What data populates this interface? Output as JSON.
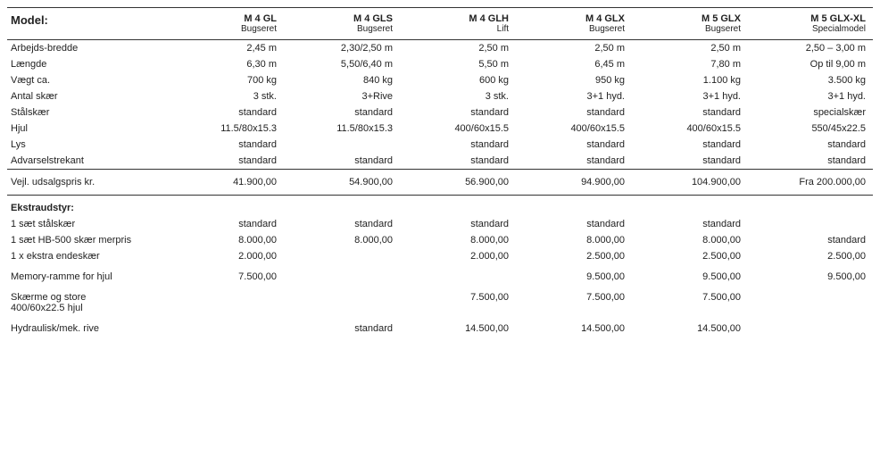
{
  "header": {
    "label": "Model:",
    "models": [
      {
        "name": "M 4 GL",
        "sub": "Bugseret"
      },
      {
        "name": "M 4 GLS",
        "sub": "Bugseret"
      },
      {
        "name": "M 4 GLH",
        "sub": "Lift"
      },
      {
        "name": "M 4 GLX",
        "sub": "Bugseret"
      },
      {
        "name": "M 5 GLX",
        "sub": "Bugseret"
      },
      {
        "name": "M 5 GLX-XL",
        "sub": "Specialmodel"
      }
    ]
  },
  "specs": [
    {
      "label": "Arbejds-bredde",
      "v": [
        "2,45 m",
        "2,30/2,50 m",
        "2,50 m",
        "2,50 m",
        "2,50 m",
        "2,50 – 3,00 m"
      ]
    },
    {
      "label": "Længde",
      "v": [
        "6,30 m",
        "5,50/6,40 m",
        "5,50 m",
        "6,45 m",
        "7,80 m",
        "Op til 9,00 m"
      ]
    },
    {
      "label": "Vægt ca.",
      "v": [
        "700 kg",
        "840 kg",
        "600 kg",
        "950 kg",
        "1.100 kg",
        "3.500 kg"
      ]
    },
    {
      "label": "Antal skær",
      "v": [
        "3 stk.",
        "3+Rive",
        "3 stk.",
        "3+1 hyd.",
        "3+1 hyd.",
        "3+1 hyd."
      ]
    },
    {
      "label": "Stålskær",
      "v": [
        "standard",
        "standard",
        "standard",
        "standard",
        "standard",
        "specialskær"
      ]
    },
    {
      "label": "Hjul",
      "v": [
        "11.5/80x15.3",
        "11.5/80x15.3",
        "400/60x15.5",
        "400/60x15.5",
        "400/60x15.5",
        "550/45x22.5"
      ]
    },
    {
      "label": "Lys",
      "v": [
        "standard",
        "",
        "standard",
        "standard",
        "standard",
        "standard"
      ]
    },
    {
      "label": "Advarselstrekant",
      "v": [
        "standard",
        "standard",
        "standard",
        "standard",
        "standard",
        "standard"
      ]
    }
  ],
  "price": {
    "label": "Vejl. udsalgspris kr.",
    "v": [
      "41.900,00",
      "54.900,00",
      "56.900,00",
      "94.900,00",
      "104.900,00",
      "Fra 200.000,00"
    ]
  },
  "extras": {
    "heading": "Ekstraudstyr:",
    "rows": [
      {
        "label": "1 sæt stålskær",
        "v": [
          "standard",
          "standard",
          "standard",
          "standard",
          "standard",
          ""
        ],
        "gap": false
      },
      {
        "label": "1 sæt HB-500 skær merpris",
        "v": [
          "8.000,00",
          "8.000,00",
          "8.000,00",
          "8.000,00",
          "8.000,00",
          "standard"
        ],
        "gap": false
      },
      {
        "label": "1 x ekstra endeskær",
        "v": [
          "2.000,00",
          "",
          "2.000,00",
          "2.500,00",
          "2.500,00",
          "2.500,00"
        ],
        "gap": false
      },
      {
        "label": "Memory-ramme for hjul",
        "v": [
          "7.500,00",
          "",
          "",
          "9.500,00",
          "9.500,00",
          "9.500,00"
        ],
        "gap": true
      },
      {
        "label": "Skærme og store\n400/60x22.5 hjul",
        "v": [
          "",
          "",
          "7.500,00",
          "7.500,00",
          "7.500,00",
          ""
        ],
        "gap": true
      },
      {
        "label": "Hydraulisk/mek. rive",
        "v": [
          "",
          "standard",
          "14.500,00",
          "14.500,00",
          "14.500,00",
          ""
        ],
        "gap": true
      }
    ]
  }
}
